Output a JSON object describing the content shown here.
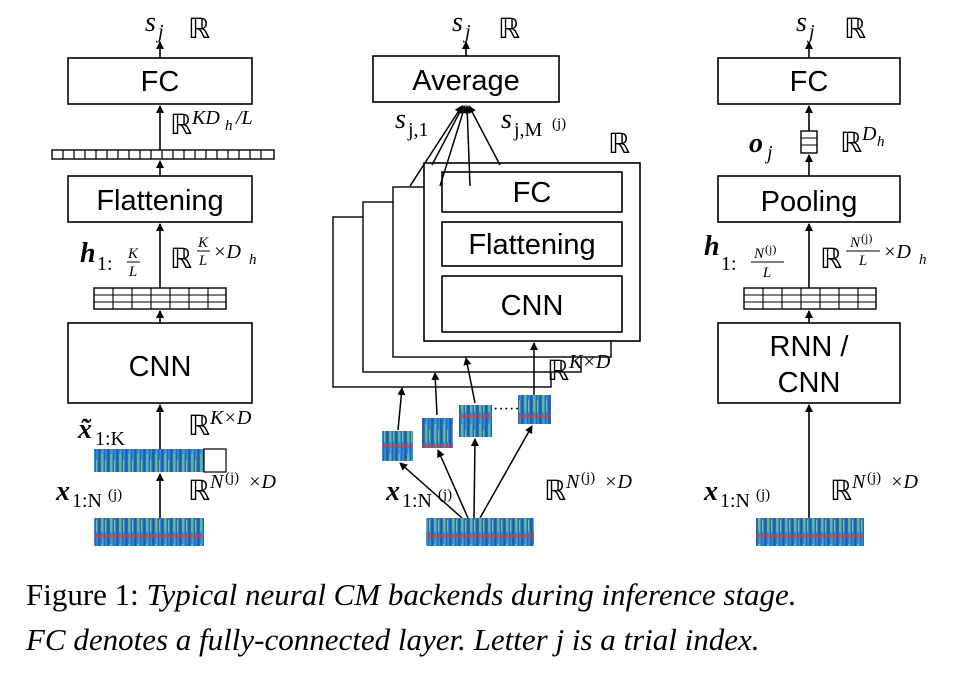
{
  "left_panel": {
    "output_label": "s",
    "output_sub": "j",
    "output_space": "ℝ",
    "fc_label": "FC",
    "fc_input_space": "ℝ",
    "fc_input_sup": "KD",
    "fc_input_sup_sub": "h",
    "fc_input_sup_tail": "/L",
    "flatten_label": "Flattening",
    "h_label": "h",
    "h_sub": "1:",
    "h_frac_num": "K",
    "h_frac_den": "L",
    "h_space": "ℝ",
    "h_space_num": "K",
    "h_space_den": "L",
    "h_space_tail": "×D",
    "h_space_tail_sub": "h",
    "cnn_label": "CNN",
    "xt_label": "x̃",
    "xt_sub": "1:K",
    "xt_space": "ℝ",
    "xt_space_sup": "K×D",
    "x_label": "x",
    "x_sub": "1:N",
    "x_sub_sup": "(j)",
    "x_space": "ℝ",
    "x_space_sup": "N",
    "x_space_sup_sup": "(j)",
    "x_space_tail": "×D"
  },
  "middle_panel": {
    "output_label": "s",
    "output_sub": "j",
    "output_space": "ℝ",
    "average_label": "Average",
    "s1_label": "s",
    "s1_sub": "j,1",
    "sm_label": "s",
    "sm_sub": "j,M",
    "sm_sub_sup": "(j)",
    "seg_space": "ℝ",
    "fc_label": "FC",
    "flatten_label": "Flattening",
    "cnn_label": "CNN",
    "seg_in_space": "ℝ",
    "seg_in_sup": "K×D",
    "ellipsis": "·····",
    "x_label": "x",
    "x_sub": "1:N",
    "x_sub_sup": "(j)",
    "x_space": "ℝ",
    "x_space_sup": "N",
    "x_space_sup_sup": "(j)",
    "x_space_tail": "×D"
  },
  "right_panel": {
    "output_label": "s",
    "output_sub": "j",
    "output_space": "ℝ",
    "fc_label": "FC",
    "o_label": "o",
    "o_sub": "j",
    "o_space": "ℝ",
    "o_space_sup": "D",
    "o_space_sup_sub": "h",
    "pooling_label": "Pooling",
    "h_label": "h",
    "h_sub": "1:",
    "h_frac_num": "N",
    "h_frac_num_sup": "(j)",
    "h_frac_den": "L",
    "h_space": "ℝ",
    "h_space_num": "N",
    "h_space_num_sup": "(j)",
    "h_space_den": "L",
    "h_space_tail": "×D",
    "h_space_tail_sub": "h",
    "rnn_label_line1": "RNN /",
    "rnn_label_line2": "CNN",
    "x_label": "x",
    "x_sub": "1:N",
    "x_sub_sup": "(j)",
    "x_space": "ℝ",
    "x_space_sup": "N",
    "x_space_sup_sup": "(j)",
    "x_space_tail": "×D"
  },
  "caption": {
    "prefix": "Figure 1:",
    "line1": "Typical neural CM backends during inference stage.",
    "line2_a": "FC denotes a fully-connected layer. Letter ",
    "line2_var": "j",
    "line2_b": " is a trial index."
  },
  "colors": {
    "spectrogram_blue": "#1a4fb0",
    "spectrogram_cyan": "#3fb0d8",
    "spectrogram_green": "#6fcf5a",
    "spectrogram_yellow": "#f2d33a",
    "spectrogram_red": "#e2392b"
  }
}
